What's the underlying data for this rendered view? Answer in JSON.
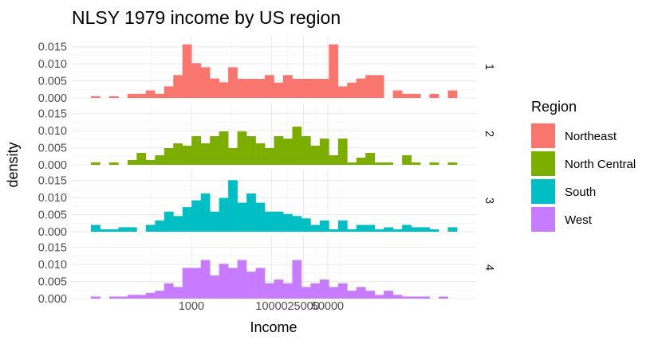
{
  "chart_data": {
    "type": "bar",
    "title": "NLSY 1979 income by US region",
    "xlabel": "Income",
    "ylabel": "density",
    "x_scale": "log",
    "x_ticks": [
      {
        "value": 1000,
        "label": "1000"
      },
      {
        "value": 10000,
        "label": "10000"
      },
      {
        "value": 25000,
        "label": "25000"
      },
      {
        "value": 50000,
        "label": "50000"
      }
    ],
    "y_ticks": [
      {
        "value": 0,
        "label": "0.000"
      },
      {
        "value": 0.005,
        "label": "0.005"
      },
      {
        "value": 0.01,
        "label": "0.010"
      },
      {
        "value": 0.015,
        "label": "0.015"
      }
    ],
    "ylim": [
      0,
      0.0182
    ],
    "grid": true,
    "legend": {
      "title": "Region",
      "position": "right",
      "entries": [
        {
          "label": "Northeast",
          "color": "#F8766D"
        },
        {
          "label": "North Central",
          "color": "#7CAE00"
        },
        {
          "label": "South",
          "color": "#00BFC4"
        },
        {
          "label": "West",
          "color": "#C77CFF"
        }
      ]
    },
    "bins": 40,
    "facets": [
      {
        "strip": "1",
        "color": "#F8766D",
        "values": [
          0.0005,
          0,
          0.0005,
          0,
          0.0012,
          0.0012,
          0.0022,
          0.0012,
          0.0034,
          0.0067,
          0.0157,
          0.0102,
          0.009,
          0.0057,
          0.0046,
          0.009,
          0.0056,
          0.0056,
          0.0056,
          0.0067,
          0.0045,
          0.0067,
          0.0056,
          0.0056,
          0.0056,
          0.0056,
          0.0157,
          0.0034,
          0.0045,
          0.0057,
          0.0067,
          0.0067,
          0,
          0.0022,
          0.0012,
          0.0012,
          0,
          0.0012,
          0,
          0.0022
        ]
      },
      {
        "strip": "2",
        "color": "#7CAE00",
        "values": [
          0.0007,
          0,
          0.0007,
          0,
          0.0014,
          0.0035,
          0.0014,
          0.0028,
          0.0049,
          0.0063,
          0.0056,
          0.0084,
          0.0063,
          0.0084,
          0.0098,
          0.0049,
          0.0098,
          0.0084,
          0.0063,
          0.0049,
          0.0084,
          0.0077,
          0.0112,
          0.0084,
          0.0056,
          0.0077,
          0.0028,
          0.0077,
          0.0007,
          0.0021,
          0.0035,
          0.0007,
          0.0007,
          0,
          0.0028,
          0.0007,
          0,
          0.0007,
          0,
          0.0007
        ]
      },
      {
        "strip": "3",
        "color": "#00BFC4",
        "values": [
          0.002,
          0.0007,
          0.0007,
          0.0013,
          0.0013,
          0,
          0.002,
          0.0033,
          0.0059,
          0.0046,
          0.0072,
          0.0092,
          0.0112,
          0.0059,
          0.0099,
          0.0151,
          0.0085,
          0.0112,
          0.0085,
          0.0059,
          0.0059,
          0.0052,
          0.0046,
          0.0039,
          0.002,
          0.0033,
          0.0007,
          0.0033,
          0.0007,
          0.002,
          0.002,
          0.0007,
          0.0013,
          0.0007,
          0.002,
          0.0013,
          0.0013,
          0.0007,
          0,
          0.0013
        ]
      },
      {
        "strip": "4",
        "color": "#C77CFF",
        "values": [
          0.0006,
          0,
          0.0006,
          0.0006,
          0.0011,
          0.0011,
          0.0017,
          0.0023,
          0.0045,
          0.0034,
          0.009,
          0.009,
          0.0113,
          0.0068,
          0.0102,
          0.009,
          0.0113,
          0.0079,
          0.009,
          0.0045,
          0.0056,
          0.0045,
          0.0113,
          0.0034,
          0.0045,
          0.0056,
          0.0034,
          0.0045,
          0.0023,
          0.0034,
          0.0023,
          0.0011,
          0.0023,
          0.0011,
          0.0006,
          0.0006,
          0.0006,
          0,
          0.0006,
          0
        ]
      }
    ]
  }
}
